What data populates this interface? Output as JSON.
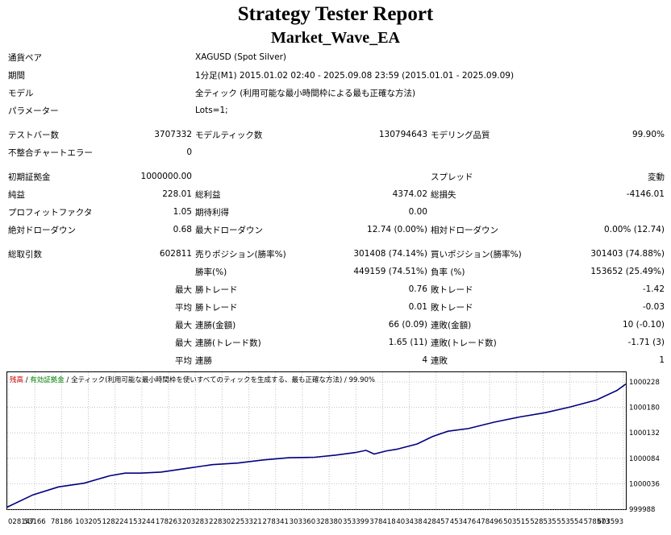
{
  "header": {
    "title": "Strategy Tester Report",
    "ea_name": "Market_Wave_EA"
  },
  "info": {
    "symbol_label": "通貨ペア",
    "symbol_value": "XAGUSD (Spot Silver)",
    "period_label": "期間",
    "period_value": "1分足(M1) 2015.01.02 02:40 - 2025.09.08 23:59 (2015.01.01 - 2025.09.09)",
    "model_label": "モデル",
    "model_value": "全ティック (利用可能な最小時間枠による最も正確な方法)",
    "params_label": "パラメーター",
    "params_value": "Lots=1;"
  },
  "stats": {
    "bars_label": "テストバー数",
    "bars": "3707332",
    "ticks_label": "モデルティック数",
    "ticks": "130794643",
    "quality_label": "モデリング品質",
    "quality": "99.90%",
    "mismatch_label": "不整合チャートエラー",
    "mismatch": "0",
    "deposit_label": "初期証拠金",
    "deposit": "1000000.00",
    "spread_label": "スプレッド",
    "spread": "変動",
    "net_label": "純益",
    "net": "228.01",
    "gross_profit_label": "総利益",
    "gross_profit": "4374.02",
    "gross_loss_label": "総損失",
    "gross_loss": "-4146.01",
    "pf_label": "プロフィットファクタ",
    "pf": "1.05",
    "expected_label": "期待利得",
    "expected": "0.00",
    "abs_dd_label": "絶対ドローダウン",
    "abs_dd": "0.68",
    "max_dd_label": "最大ドローダウン",
    "max_dd": "12.74 (0.00%)",
    "rel_dd_label": "相対ドローダウン",
    "rel_dd": "0.00% (12.74)",
    "trades_label": "総取引数",
    "trades": "602811",
    "short_label": "売りポジション(勝率%)",
    "short": "301408 (74.14%)",
    "long_label": "買いポジション(勝率%)",
    "long": "301403 (74.88%)",
    "win_label": "勝率(%)",
    "win": "449159 (74.51%)",
    "loss_label": "負率 (%)",
    "loss": "153652 (25.49%)",
    "max_word": "最大",
    "avg_word": "平均",
    "largest_win_label": "勝トレード",
    "largest_win": "0.76",
    "largest_loss_label": "敗トレード",
    "largest_loss": "-1.42",
    "avg_win_label": "勝トレード",
    "avg_win": "0.01",
    "avg_loss_label": "敗トレード",
    "avg_loss": "-0.03",
    "max_cons_wins_label": "連勝(金額)",
    "max_cons_wins": "66 (0.09)",
    "max_cons_losses_label": "連敗(金額)",
    "max_cons_losses": "10 (-0.10)",
    "max_cons_profit_label": "連勝(トレード数)",
    "max_cons_profit": "1.65 (11)",
    "max_cons_loss_label": "連敗(トレード数)",
    "max_cons_loss": "-1.71 (3)",
    "avg_cons_wins_label": "連勝",
    "avg_cons_wins": "4",
    "avg_cons_losses_label": "連敗",
    "avg_cons_losses": "1"
  },
  "chart_legend": {
    "balance": "残高",
    "sep1": " / ",
    "equity": "有効証拠金",
    "sep2": " / ",
    "model": "全ティック(利用可能な最小時間枠を使いすべてのティックを生成する、最も正確な方法)",
    "sep3": " / ",
    "quality": "99.90%",
    "balance_color": "#cc0000",
    "equity_color": "#008000"
  },
  "chart_data": {
    "type": "line",
    "x_ticks": [
      "028147",
      "53166",
      "78186",
      "103205",
      "128224",
      "153244",
      "178263",
      "203283",
      "228302",
      "253321",
      "278341",
      "303360",
      "328380",
      "353399",
      "378418",
      "403438",
      "428457",
      "453476",
      "478496",
      "503515",
      "528535",
      "553554",
      "578573",
      "603593"
    ],
    "y_ticks": [
      "1000228",
      "1000180",
      "1000132",
      "1000084",
      "1000036",
      "999988"
    ],
    "ylim": [
      999988,
      1000228
    ],
    "series": [
      {
        "values": [
          [
            0,
            999992
          ],
          [
            25000,
            1000015
          ],
          [
            50000,
            1000030
          ],
          [
            75000,
            1000037
          ],
          [
            100000,
            1000051
          ],
          [
            115000,
            1000056
          ],
          [
            130000,
            1000056
          ],
          [
            150000,
            1000058
          ],
          [
            175000,
            1000065
          ],
          [
            200000,
            1000072
          ],
          [
            225000,
            1000075
          ],
          [
            250000,
            1000081
          ],
          [
            275000,
            1000085
          ],
          [
            300000,
            1000086
          ],
          [
            320000,
            1000090
          ],
          [
            340000,
            1000095
          ],
          [
            350000,
            1000099
          ],
          [
            358000,
            1000092
          ],
          [
            370000,
            1000098
          ],
          [
            380000,
            1000101
          ],
          [
            400000,
            1000111
          ],
          [
            415000,
            1000125
          ],
          [
            430000,
            1000135
          ],
          [
            450000,
            1000140
          ],
          [
            475000,
            1000152
          ],
          [
            500000,
            1000162
          ],
          [
            525000,
            1000170
          ],
          [
            550000,
            1000181
          ],
          [
            575000,
            1000194
          ],
          [
            595000,
            1000212
          ],
          [
            603593,
            1000224
          ]
        ],
        "color": "#000080"
      }
    ]
  }
}
